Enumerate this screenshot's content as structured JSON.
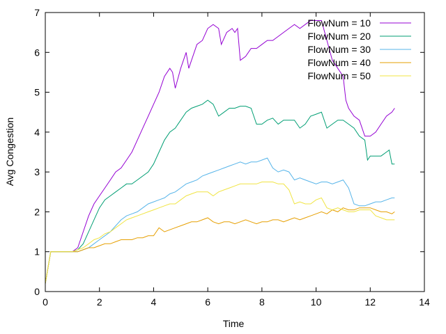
{
  "chart_data": {
    "type": "line",
    "title": "",
    "xlabel": "Time",
    "ylabel": "Avg Congestion",
    "xlim": [
      0,
      14
    ],
    "ylim": [
      0,
      7
    ],
    "xticks": [
      0,
      2,
      4,
      6,
      8,
      10,
      12,
      14
    ],
    "yticks": [
      0,
      1,
      2,
      3,
      4,
      5,
      6,
      7
    ],
    "grid": false,
    "legend_position": "top-right",
    "series": [
      {
        "name": "FlowNum = 10",
        "color": "#9400d3",
        "points": [
          [
            0,
            0.2
          ],
          [
            0.2,
            1.0
          ],
          [
            1.0,
            1.0
          ],
          [
            1.2,
            1.1
          ],
          [
            1.4,
            1.5
          ],
          [
            1.6,
            1.9
          ],
          [
            1.8,
            2.2
          ],
          [
            2.0,
            2.4
          ],
          [
            2.2,
            2.6
          ],
          [
            2.4,
            2.8
          ],
          [
            2.6,
            3.0
          ],
          [
            2.8,
            3.1
          ],
          [
            3.0,
            3.3
          ],
          [
            3.2,
            3.5
          ],
          [
            3.4,
            3.8
          ],
          [
            3.6,
            4.1
          ],
          [
            3.8,
            4.4
          ],
          [
            4.0,
            4.7
          ],
          [
            4.2,
            5.0
          ],
          [
            4.4,
            5.4
          ],
          [
            4.6,
            5.6
          ],
          [
            4.7,
            5.5
          ],
          [
            4.8,
            5.1
          ],
          [
            5.0,
            5.6
          ],
          [
            5.2,
            6.0
          ],
          [
            5.3,
            5.6
          ],
          [
            5.4,
            5.8
          ],
          [
            5.6,
            6.2
          ],
          [
            5.8,
            6.3
          ],
          [
            6.0,
            6.6
          ],
          [
            6.2,
            6.7
          ],
          [
            6.4,
            6.6
          ],
          [
            6.5,
            6.2
          ],
          [
            6.7,
            6.5
          ],
          [
            6.9,
            6.6
          ],
          [
            7.0,
            6.5
          ],
          [
            7.1,
            6.6
          ],
          [
            7.2,
            5.8
          ],
          [
            7.4,
            5.9
          ],
          [
            7.6,
            6.1
          ],
          [
            7.8,
            6.1
          ],
          [
            8.0,
            6.2
          ],
          [
            8.2,
            6.3
          ],
          [
            8.4,
            6.3
          ],
          [
            8.6,
            6.4
          ],
          [
            8.8,
            6.5
          ],
          [
            9.0,
            6.6
          ],
          [
            9.2,
            6.7
          ],
          [
            9.4,
            6.6
          ],
          [
            9.6,
            6.7
          ],
          [
            9.8,
            6.8
          ],
          [
            10.0,
            6.8
          ],
          [
            10.2,
            6.8
          ],
          [
            10.4,
            6.3
          ],
          [
            10.6,
            5.8
          ],
          [
            10.8,
            5.6
          ],
          [
            11.0,
            5.4
          ],
          [
            11.1,
            4.8
          ],
          [
            11.2,
            4.6
          ],
          [
            11.4,
            4.4
          ],
          [
            11.6,
            4.3
          ],
          [
            11.8,
            3.9
          ],
          [
            12.0,
            3.9
          ],
          [
            12.2,
            4.0
          ],
          [
            12.4,
            4.2
          ],
          [
            12.6,
            4.4
          ],
          [
            12.8,
            4.5
          ],
          [
            12.9,
            4.6
          ]
        ]
      },
      {
        "name": "FlowNum = 20",
        "color": "#009e73",
        "points": [
          [
            0,
            0.2
          ],
          [
            0.2,
            1.0
          ],
          [
            1.0,
            1.0
          ],
          [
            1.2,
            1.05
          ],
          [
            1.4,
            1.2
          ],
          [
            1.6,
            1.5
          ],
          [
            1.8,
            1.8
          ],
          [
            2.0,
            2.1
          ],
          [
            2.2,
            2.3
          ],
          [
            2.4,
            2.4
          ],
          [
            2.6,
            2.5
          ],
          [
            2.8,
            2.6
          ],
          [
            3.0,
            2.7
          ],
          [
            3.2,
            2.7
          ],
          [
            3.4,
            2.8
          ],
          [
            3.6,
            2.9
          ],
          [
            3.8,
            3.0
          ],
          [
            4.0,
            3.2
          ],
          [
            4.2,
            3.5
          ],
          [
            4.4,
            3.8
          ],
          [
            4.6,
            4.0
          ],
          [
            4.8,
            4.1
          ],
          [
            5.0,
            4.3
          ],
          [
            5.2,
            4.5
          ],
          [
            5.4,
            4.6
          ],
          [
            5.6,
            4.65
          ],
          [
            5.8,
            4.7
          ],
          [
            6.0,
            4.8
          ],
          [
            6.2,
            4.7
          ],
          [
            6.4,
            4.4
          ],
          [
            6.6,
            4.5
          ],
          [
            6.8,
            4.6
          ],
          [
            7.0,
            4.6
          ],
          [
            7.2,
            4.65
          ],
          [
            7.4,
            4.65
          ],
          [
            7.6,
            4.6
          ],
          [
            7.8,
            4.2
          ],
          [
            8.0,
            4.2
          ],
          [
            8.2,
            4.3
          ],
          [
            8.4,
            4.35
          ],
          [
            8.6,
            4.2
          ],
          [
            8.8,
            4.3
          ],
          [
            9.0,
            4.3
          ],
          [
            9.2,
            4.3
          ],
          [
            9.4,
            4.1
          ],
          [
            9.6,
            4.2
          ],
          [
            9.8,
            4.4
          ],
          [
            10.0,
            4.45
          ],
          [
            10.2,
            4.5
          ],
          [
            10.4,
            4.1
          ],
          [
            10.6,
            4.2
          ],
          [
            10.8,
            4.3
          ],
          [
            11.0,
            4.3
          ],
          [
            11.2,
            4.2
          ],
          [
            11.4,
            4.1
          ],
          [
            11.6,
            3.9
          ],
          [
            11.8,
            3.8
          ],
          [
            11.9,
            3.3
          ],
          [
            12.0,
            3.4
          ],
          [
            12.2,
            3.4
          ],
          [
            12.4,
            3.4
          ],
          [
            12.6,
            3.5
          ],
          [
            12.7,
            3.55
          ],
          [
            12.8,
            3.2
          ],
          [
            12.9,
            3.2
          ]
        ]
      },
      {
        "name": "FlowNum = 30",
        "color": "#56b4e9",
        "points": [
          [
            0,
            0.2
          ],
          [
            0.2,
            1.0
          ],
          [
            1.0,
            1.0
          ],
          [
            1.2,
            1.0
          ],
          [
            1.4,
            1.05
          ],
          [
            1.6,
            1.1
          ],
          [
            1.8,
            1.2
          ],
          [
            2.0,
            1.3
          ],
          [
            2.2,
            1.4
          ],
          [
            2.4,
            1.5
          ],
          [
            2.6,
            1.65
          ],
          [
            2.8,
            1.8
          ],
          [
            3.0,
            1.9
          ],
          [
            3.2,
            1.95
          ],
          [
            3.4,
            2.0
          ],
          [
            3.6,
            2.1
          ],
          [
            3.8,
            2.2
          ],
          [
            4.0,
            2.25
          ],
          [
            4.2,
            2.3
          ],
          [
            4.4,
            2.35
          ],
          [
            4.6,
            2.45
          ],
          [
            4.8,
            2.5
          ],
          [
            5.0,
            2.6
          ],
          [
            5.2,
            2.7
          ],
          [
            5.4,
            2.75
          ],
          [
            5.6,
            2.8
          ],
          [
            5.8,
            2.9
          ],
          [
            6.0,
            2.95
          ],
          [
            6.2,
            3.0
          ],
          [
            6.4,
            3.05
          ],
          [
            6.6,
            3.1
          ],
          [
            6.8,
            3.15
          ],
          [
            7.0,
            3.2
          ],
          [
            7.2,
            3.25
          ],
          [
            7.4,
            3.2
          ],
          [
            7.6,
            3.25
          ],
          [
            7.8,
            3.25
          ],
          [
            8.0,
            3.3
          ],
          [
            8.2,
            3.35
          ],
          [
            8.4,
            3.1
          ],
          [
            8.6,
            3.0
          ],
          [
            8.8,
            3.05
          ],
          [
            9.0,
            3.0
          ],
          [
            9.2,
            2.8
          ],
          [
            9.4,
            2.85
          ],
          [
            9.6,
            2.8
          ],
          [
            9.8,
            2.75
          ],
          [
            10.0,
            2.7
          ],
          [
            10.2,
            2.75
          ],
          [
            10.4,
            2.75
          ],
          [
            10.6,
            2.7
          ],
          [
            10.8,
            2.75
          ],
          [
            11.0,
            2.8
          ],
          [
            11.2,
            2.6
          ],
          [
            11.4,
            2.2
          ],
          [
            11.6,
            2.15
          ],
          [
            11.8,
            2.15
          ],
          [
            12.0,
            2.2
          ],
          [
            12.2,
            2.25
          ],
          [
            12.4,
            2.25
          ],
          [
            12.6,
            2.3
          ],
          [
            12.8,
            2.35
          ],
          [
            12.9,
            2.35
          ]
        ]
      },
      {
        "name": "FlowNum = 40",
        "color": "#e69f00",
        "points": [
          [
            0,
            0.2
          ],
          [
            0.2,
            1.0
          ],
          [
            1.0,
            1.0
          ],
          [
            1.2,
            1.0
          ],
          [
            1.4,
            1.05
          ],
          [
            1.6,
            1.1
          ],
          [
            1.8,
            1.1
          ],
          [
            2.0,
            1.15
          ],
          [
            2.2,
            1.2
          ],
          [
            2.4,
            1.2
          ],
          [
            2.6,
            1.25
          ],
          [
            2.8,
            1.3
          ],
          [
            3.0,
            1.3
          ],
          [
            3.2,
            1.3
          ],
          [
            3.4,
            1.35
          ],
          [
            3.6,
            1.35
          ],
          [
            3.8,
            1.4
          ],
          [
            4.0,
            1.4
          ],
          [
            4.2,
            1.6
          ],
          [
            4.4,
            1.5
          ],
          [
            4.6,
            1.55
          ],
          [
            4.8,
            1.6
          ],
          [
            5.0,
            1.65
          ],
          [
            5.2,
            1.7
          ],
          [
            5.4,
            1.75
          ],
          [
            5.6,
            1.75
          ],
          [
            5.8,
            1.8
          ],
          [
            6.0,
            1.85
          ],
          [
            6.2,
            1.75
          ],
          [
            6.4,
            1.7
          ],
          [
            6.6,
            1.75
          ],
          [
            6.8,
            1.75
          ],
          [
            7.0,
            1.7
          ],
          [
            7.2,
            1.75
          ],
          [
            7.4,
            1.8
          ],
          [
            7.6,
            1.75
          ],
          [
            7.8,
            1.7
          ],
          [
            8.0,
            1.75
          ],
          [
            8.2,
            1.75
          ],
          [
            8.4,
            1.8
          ],
          [
            8.6,
            1.8
          ],
          [
            8.8,
            1.75
          ],
          [
            9.0,
            1.8
          ],
          [
            9.2,
            1.85
          ],
          [
            9.4,
            1.8
          ],
          [
            9.6,
            1.85
          ],
          [
            9.8,
            1.9
          ],
          [
            10.0,
            1.95
          ],
          [
            10.2,
            2.0
          ],
          [
            10.4,
            1.95
          ],
          [
            10.6,
            2.05
          ],
          [
            10.8,
            2.0
          ],
          [
            11.0,
            2.1
          ],
          [
            11.2,
            2.05
          ],
          [
            11.4,
            2.05
          ],
          [
            11.6,
            2.1
          ],
          [
            11.8,
            2.1
          ],
          [
            12.0,
            2.1
          ],
          [
            12.2,
            2.05
          ],
          [
            12.4,
            2.0
          ],
          [
            12.6,
            2.0
          ],
          [
            12.8,
            1.95
          ],
          [
            12.9,
            2.0
          ]
        ]
      },
      {
        "name": "FlowNum = 50",
        "color": "#f0e442",
        "points": [
          [
            0,
            0.2
          ],
          [
            0.2,
            1.0
          ],
          [
            1.0,
            1.0
          ],
          [
            1.2,
            1.05
          ],
          [
            1.4,
            1.1
          ],
          [
            1.6,
            1.2
          ],
          [
            1.8,
            1.3
          ],
          [
            2.0,
            1.35
          ],
          [
            2.2,
            1.45
          ],
          [
            2.4,
            1.5
          ],
          [
            2.6,
            1.6
          ],
          [
            2.8,
            1.7
          ],
          [
            3.0,
            1.8
          ],
          [
            3.2,
            1.85
          ],
          [
            3.4,
            1.9
          ],
          [
            3.6,
            1.95
          ],
          [
            3.8,
            2.0
          ],
          [
            4.0,
            2.05
          ],
          [
            4.2,
            2.1
          ],
          [
            4.4,
            2.15
          ],
          [
            4.6,
            2.2
          ],
          [
            4.8,
            2.2
          ],
          [
            5.0,
            2.3
          ],
          [
            5.2,
            2.4
          ],
          [
            5.4,
            2.45
          ],
          [
            5.6,
            2.5
          ],
          [
            5.8,
            2.5
          ],
          [
            6.0,
            2.5
          ],
          [
            6.2,
            2.4
          ],
          [
            6.4,
            2.5
          ],
          [
            6.6,
            2.55
          ],
          [
            6.8,
            2.6
          ],
          [
            7.0,
            2.65
          ],
          [
            7.2,
            2.7
          ],
          [
            7.4,
            2.7
          ],
          [
            7.6,
            2.7
          ],
          [
            7.8,
            2.7
          ],
          [
            8.0,
            2.75
          ],
          [
            8.2,
            2.75
          ],
          [
            8.4,
            2.75
          ],
          [
            8.6,
            2.7
          ],
          [
            8.8,
            2.7
          ],
          [
            9.0,
            2.55
          ],
          [
            9.2,
            2.2
          ],
          [
            9.4,
            2.25
          ],
          [
            9.6,
            2.2
          ],
          [
            9.8,
            2.2
          ],
          [
            10.0,
            2.3
          ],
          [
            10.2,
            2.35
          ],
          [
            10.4,
            2.1
          ],
          [
            10.6,
            2.05
          ],
          [
            10.8,
            2.1
          ],
          [
            11.0,
            2.05
          ],
          [
            11.2,
            2.0
          ],
          [
            11.4,
            2.0
          ],
          [
            11.6,
            2.05
          ],
          [
            11.8,
            2.05
          ],
          [
            12.0,
            2.05
          ],
          [
            12.2,
            1.9
          ],
          [
            12.4,
            1.85
          ],
          [
            12.6,
            1.8
          ],
          [
            12.8,
            1.8
          ],
          [
            12.9,
            1.8
          ]
        ]
      }
    ]
  }
}
